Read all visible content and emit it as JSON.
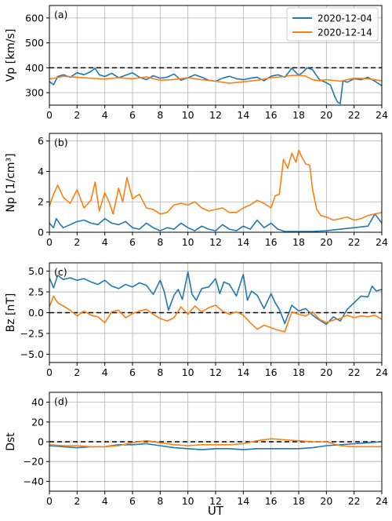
{
  "figure": {
    "xlabel": "UT",
    "legend": {
      "placement": "top-right",
      "entries": [
        {
          "label": "2020-12-04",
          "color": "#1f77b4"
        },
        {
          "label": "2020-12-14",
          "color": "#ff7f0e"
        }
      ]
    }
  },
  "chart_data": [
    {
      "type": "line",
      "panel_label": "(a)",
      "title": "",
      "xlabel": "",
      "ylabel": "Vp [km/s]",
      "xlim": [
        0,
        24
      ],
      "ylim": [
        250,
        650
      ],
      "xticks": [
        0,
        2,
        4,
        6,
        8,
        10,
        12,
        14,
        16,
        18,
        20,
        22,
        24
      ],
      "yticks": [
        300,
        400,
        500,
        600
      ],
      "grid": true,
      "reference_line": {
        "y": 400,
        "style": "dashed",
        "color": "#000000"
      },
      "series": [
        {
          "name": "2020-12-04",
          "color": "#1f77b4",
          "x": [
            0,
            0.3,
            0.6,
            1,
            1.5,
            2,
            2.5,
            3,
            3.3,
            3.6,
            4,
            4.5,
            5,
            5.5,
            6,
            6.5,
            7,
            7.5,
            8,
            8.5,
            9,
            9.5,
            10,
            10.5,
            11,
            11.5,
            12,
            12.5,
            13,
            13.5,
            14,
            14.5,
            15,
            15.5,
            16,
            16.5,
            17,
            17.5,
            18,
            18.3,
            18.6,
            19,
            19.5,
            20,
            20.3,
            20.6,
            20.8,
            21,
            21.2,
            21.5,
            22,
            22.5,
            23,
            23.5,
            24
          ],
          "y": [
            345,
            332,
            365,
            372,
            362,
            380,
            372,
            385,
            398,
            372,
            365,
            378,
            360,
            370,
            380,
            362,
            352,
            368,
            358,
            362,
            375,
            350,
            360,
            372,
            362,
            350,
            346,
            358,
            366,
            356,
            352,
            358,
            362,
            348,
            366,
            372,
            362,
            398,
            370,
            382,
            400,
            392,
            352,
            340,
            330,
            285,
            262,
            256,
            348,
            342,
            356,
            352,
            362,
            346,
            328
          ]
        },
        {
          "name": "2020-12-14",
          "color": "#ff7f0e",
          "x": [
            0,
            0.5,
            1,
            2,
            3,
            4,
            5,
            6,
            7,
            8,
            9,
            10,
            11,
            12,
            13,
            14,
            15,
            16,
            17,
            17.5,
            18,
            18.5,
            19,
            19.5,
            20,
            21,
            22,
            23,
            24
          ],
          "y": [
            355,
            360,
            366,
            362,
            358,
            355,
            360,
            356,
            363,
            350,
            353,
            360,
            352,
            346,
            338,
            344,
            350,
            360,
            365,
            369,
            370,
            367,
            352,
            348,
            352,
            346,
            358,
            356,
            348
          ]
        }
      ]
    },
    {
      "type": "line",
      "panel_label": "(b)",
      "title": "",
      "xlabel": "",
      "ylabel": "Np [1/cm³]",
      "xlim": [
        0,
        24
      ],
      "ylim": [
        0,
        6.5
      ],
      "xticks": [
        0,
        2,
        4,
        6,
        8,
        10,
        12,
        14,
        16,
        18,
        20,
        22,
        24
      ],
      "yticks": [
        0,
        2,
        4,
        6
      ],
      "grid": true,
      "series": [
        {
          "name": "2020-12-04",
          "color": "#1f77b4",
          "x": [
            0,
            0.3,
            0.5,
            0.8,
            1,
            1.5,
            2,
            2.5,
            3,
            3.5,
            4,
            4.5,
            5,
            5.5,
            6,
            6.5,
            7,
            7.5,
            8,
            8.5,
            9,
            9.5,
            10,
            10.5,
            11,
            11.5,
            12,
            12.5,
            13,
            13.5,
            14,
            14.5,
            15,
            15.5,
            16,
            16.5,
            17,
            17.5,
            18,
            18.5,
            19,
            20,
            21,
            22,
            23,
            23.5,
            24
          ],
          "y": [
            0.6,
            0.3,
            0.9,
            0.5,
            0.3,
            0.5,
            0.7,
            0.8,
            0.6,
            0.5,
            0.9,
            0.6,
            0.5,
            0.7,
            0.3,
            0.2,
            0.6,
            0.3,
            0.1,
            0.3,
            0.2,
            0.6,
            0.3,
            0.1,
            0.4,
            0.2,
            0.1,
            0.5,
            0.2,
            0.1,
            0.4,
            0.2,
            0.8,
            0.3,
            0.6,
            0.2,
            0.05,
            0.05,
            0.05,
            0.05,
            0.05,
            0.1,
            0.2,
            0.3,
            0.4,
            1.2,
            0.6
          ]
        },
        {
          "name": "2020-12-14",
          "color": "#ff7f0e",
          "x": [
            0,
            0.3,
            0.6,
            1,
            1.5,
            2,
            2.5,
            3,
            3.3,
            3.6,
            4,
            4.3,
            4.6,
            5,
            5.3,
            5.6,
            6,
            6.5,
            7,
            7.5,
            8,
            8.5,
            9,
            9.5,
            10,
            10.5,
            11,
            11.5,
            12,
            12.5,
            13,
            13.5,
            14,
            14.5,
            15,
            15.5,
            16,
            16.3,
            16.6,
            16.9,
            17.2,
            17.5,
            17.8,
            18,
            18.2,
            18.5,
            18.8,
            19,
            19.3,
            19.6,
            20,
            20.5,
            21,
            21.5,
            22,
            22.5,
            23,
            23.5,
            24
          ],
          "y": [
            1.7,
            2.5,
            3.1,
            2.3,
            1.9,
            2.8,
            1.6,
            2.1,
            3.3,
            1.4,
            2.6,
            2.0,
            1.2,
            2.9,
            2.0,
            3.6,
            2.2,
            2.5,
            1.6,
            1.5,
            1.2,
            1.3,
            1.8,
            1.9,
            1.8,
            2.0,
            1.6,
            1.4,
            1.5,
            1.6,
            1.3,
            1.3,
            1.6,
            1.8,
            2.1,
            1.9,
            1.6,
            2.4,
            2.5,
            4.8,
            4.2,
            5.2,
            4.6,
            5.4,
            5.0,
            4.5,
            4.4,
            2.8,
            1.5,
            1.1,
            1.0,
            0.8,
            0.9,
            1.0,
            0.8,
            0.9,
            1.1,
            1.2,
            1.3
          ]
        }
      ]
    },
    {
      "type": "line",
      "panel_label": "(c)",
      "title": "",
      "xlabel": "",
      "ylabel": "Bz [nT]",
      "xlim": [
        0,
        24
      ],
      "ylim": [
        -6,
        6
      ],
      "xticks": [
        0,
        2,
        4,
        6,
        8,
        10,
        12,
        14,
        16,
        18,
        20,
        22,
        24
      ],
      "yticks": [
        -5.0,
        -2.5,
        0.0,
        2.5,
        5.0
      ],
      "ytick_labels": [
        "−5.0",
        "−2.5",
        "0.0",
        "2.5",
        "5.0"
      ],
      "grid": true,
      "reference_line": {
        "y": 0,
        "style": "dashed",
        "color": "#000000"
      },
      "series": [
        {
          "name": "2020-12-04",
          "color": "#1f77b4",
          "x": [
            0,
            0.3,
            0.6,
            1,
            1.5,
            2,
            2.5,
            3,
            3.5,
            4,
            4.5,
            5,
            5.5,
            6,
            6.5,
            7,
            7.5,
            8,
            8.3,
            8.6,
            9,
            9.3,
            9.6,
            10,
            10.3,
            10.6,
            11,
            11.5,
            12,
            12.3,
            12.6,
            13,
            13.5,
            14,
            14.3,
            14.6,
            15,
            15.5,
            16,
            16.3,
            16.6,
            17,
            17.5,
            18,
            18.5,
            19,
            19.5,
            20,
            20.5,
            21,
            21.5,
            22,
            22.5,
            23,
            23.3,
            23.6,
            24
          ],
          "y": [
            4.2,
            3.0,
            4.5,
            4.0,
            4.2,
            3.9,
            4.1,
            3.7,
            3.4,
            3.9,
            3.2,
            2.9,
            3.4,
            3.1,
            3.6,
            3.3,
            2.2,
            3.9,
            2.5,
            0.3,
            2.1,
            2.8,
            1.6,
            4.9,
            2.2,
            1.5,
            2.9,
            3.1,
            4.1,
            2.3,
            3.7,
            3.4,
            2.0,
            4.6,
            1.5,
            2.6,
            2.1,
            0.5,
            2.3,
            1.2,
            0.4,
            -1.3,
            0.9,
            0.2,
            0.5,
            -0.3,
            -0.9,
            -1.4,
            -0.5,
            -1.0,
            0.4,
            1.2,
            2.0,
            1.9,
            3.2,
            2.6,
            2.8
          ]
        },
        {
          "name": "2020-12-14",
          "color": "#ff7f0e",
          "x": [
            0,
            0.3,
            0.6,
            1,
            1.5,
            2,
            2.5,
            3,
            3.5,
            4,
            4.5,
            5,
            5.5,
            6,
            6.5,
            7,
            7.5,
            8,
            8.5,
            9,
            9.5,
            10,
            10.5,
            11,
            11.5,
            12,
            12.5,
            13,
            13.5,
            14,
            14.5,
            15,
            15.5,
            16,
            16.5,
            17,
            17.5,
            18,
            18.5,
            19,
            19.5,
            20,
            20.5,
            21,
            21.5,
            22,
            22.5,
            23,
            23.5,
            24
          ],
          "y": [
            0.7,
            2.0,
            1.2,
            0.8,
            0.3,
            -0.4,
            0.2,
            -0.3,
            -0.5,
            -1.2,
            0.1,
            0.3,
            -0.6,
            -0.1,
            0.2,
            0.4,
            -0.2,
            -0.7,
            -1.0,
            -0.6,
            0.7,
            -0.2,
            0.8,
            0.1,
            0.6,
            0.9,
            0.2,
            -0.2,
            0.1,
            -0.3,
            -1.2,
            -2.0,
            -1.5,
            -1.8,
            -2.1,
            -2.3,
            0.1,
            -0.2,
            -0.4,
            0.1,
            -0.8,
            -1.2,
            -0.9,
            -0.7,
            -0.3,
            -0.6,
            -0.4,
            -0.5,
            -0.3,
            -0.8
          ]
        }
      ]
    },
    {
      "type": "line",
      "panel_label": "(d)",
      "title": "",
      "xlabel": "UT",
      "ylabel": "Dst",
      "xlim": [
        0,
        24
      ],
      "ylim": [
        -50,
        50
      ],
      "xticks": [
        0,
        2,
        4,
        6,
        8,
        10,
        12,
        14,
        16,
        18,
        20,
        22,
        24
      ],
      "yticks": [
        -40,
        -20,
        0,
        20,
        40
      ],
      "ytick_labels": [
        "−40",
        "−20",
        "0",
        "20",
        "40"
      ],
      "grid": true,
      "reference_line": {
        "y": 0,
        "style": "dashed",
        "color": "#000000"
      },
      "series": [
        {
          "name": "2020-12-04",
          "color": "#1f77b4",
          "x": [
            0,
            1,
            2,
            3,
            4,
            5,
            6,
            7,
            8,
            9,
            10,
            11,
            12,
            13,
            14,
            15,
            16,
            17,
            18,
            19,
            20,
            21,
            22,
            23,
            24
          ],
          "y": [
            -4,
            -5,
            -6,
            -5,
            -5,
            -3,
            -3,
            -2,
            -4,
            -6,
            -7,
            -8,
            -7,
            -7,
            -8,
            -7,
            -7,
            -7,
            -7,
            -6,
            -4,
            -3,
            -2,
            -1,
            0
          ]
        },
        {
          "name": "2020-12-14",
          "color": "#ff7f0e",
          "x": [
            0,
            1,
            2,
            3,
            4,
            5,
            6,
            7,
            8,
            9,
            10,
            11,
            12,
            13,
            14,
            15,
            16,
            17,
            18,
            19,
            20,
            21,
            22,
            23,
            24
          ],
          "y": [
            -3,
            -4,
            -4,
            -5,
            -5,
            -4,
            -1,
            1,
            -1,
            -3,
            -4,
            -3,
            -3,
            -3,
            -2,
            1,
            3,
            2,
            1,
            0,
            0,
            -4,
            -5,
            -5,
            -5
          ]
        }
      ]
    }
  ]
}
